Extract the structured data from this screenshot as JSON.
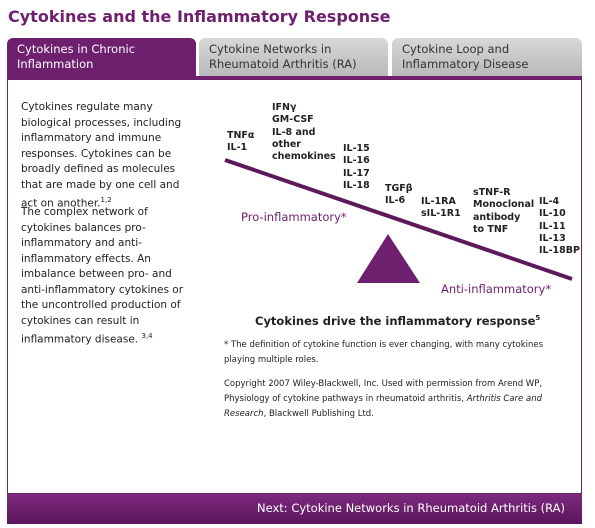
{
  "header": {
    "title": "Cytokines and the Inflammatory Response"
  },
  "tabs": [
    {
      "lines": [
        "Cytokines in Chronic",
        "Inflammation"
      ]
    },
    {
      "lines": [
        "Cytokine Networks in",
        "Rheumatoid Arthritis (RA)"
      ]
    },
    {
      "lines": [
        "Cytokine Loop and",
        "Inflammatory Disease"
      ]
    }
  ],
  "left": {
    "paragraphs": [
      {
        "text": "Cytokines regulate many biological processes, including inflammatory and immune responses. Cytokines can be broadly defined as molecules that are made by one cell and act on another.",
        "sup": "1,2"
      },
      {
        "text": "The complex network of cytokines balances pro-inflammatory and anti-inflammatory effects. An imbalance between pro- and anti-inflammatory cytokines or the uncontrolled production of cytokines can result in inflammatory disease.",
        "sup": "3,4"
      }
    ]
  },
  "diagram": {
    "groups": [
      {
        "lines": [
          "TNFα",
          "IL-1"
        ]
      },
      {
        "lines": [
          "IFNγ",
          "GM-CSF",
          "IL-8 and",
          "other",
          "chemokines"
        ]
      },
      {
        "lines": [
          "IL-15",
          "IL-16",
          "IL-17",
          "IL-18"
        ]
      },
      {
        "lines": [
          "TGFβ",
          "IL-6"
        ]
      },
      {
        "lines": [
          "IL-1RA",
          "sIL-1R1"
        ]
      },
      {
        "lines": [
          "sTNF-R",
          "Monoclonal",
          "antibody",
          "to TNF"
        ]
      },
      {
        "lines": [
          "IL-4",
          "IL-10",
          "IL-11",
          "IL-13",
          "IL-18BP"
        ]
      }
    ],
    "pro_label": "Pro-inflammatory*",
    "anti_label": "Anti-inflammatory*",
    "caption": "Cytokines drive the inflammatory response",
    "caption_sup": "5"
  },
  "notes": {
    "footnote": "* The definition of cytokine function is ever changing, with many cytokines playing multiple roles.",
    "copyright": "Copyright 2007 Wiley-Blackwell, Inc. Used with permission from Arend WP, Physiology of cytokine pathways in rheumatoid arthritis,",
    "journal": "Arthritis Care and Research",
    "publisher": ", Blackwell Publishing Ltd."
  },
  "footer": {
    "next": "Next: Cytokine Networks in Rheumatoid Arthritis (RA)"
  }
}
